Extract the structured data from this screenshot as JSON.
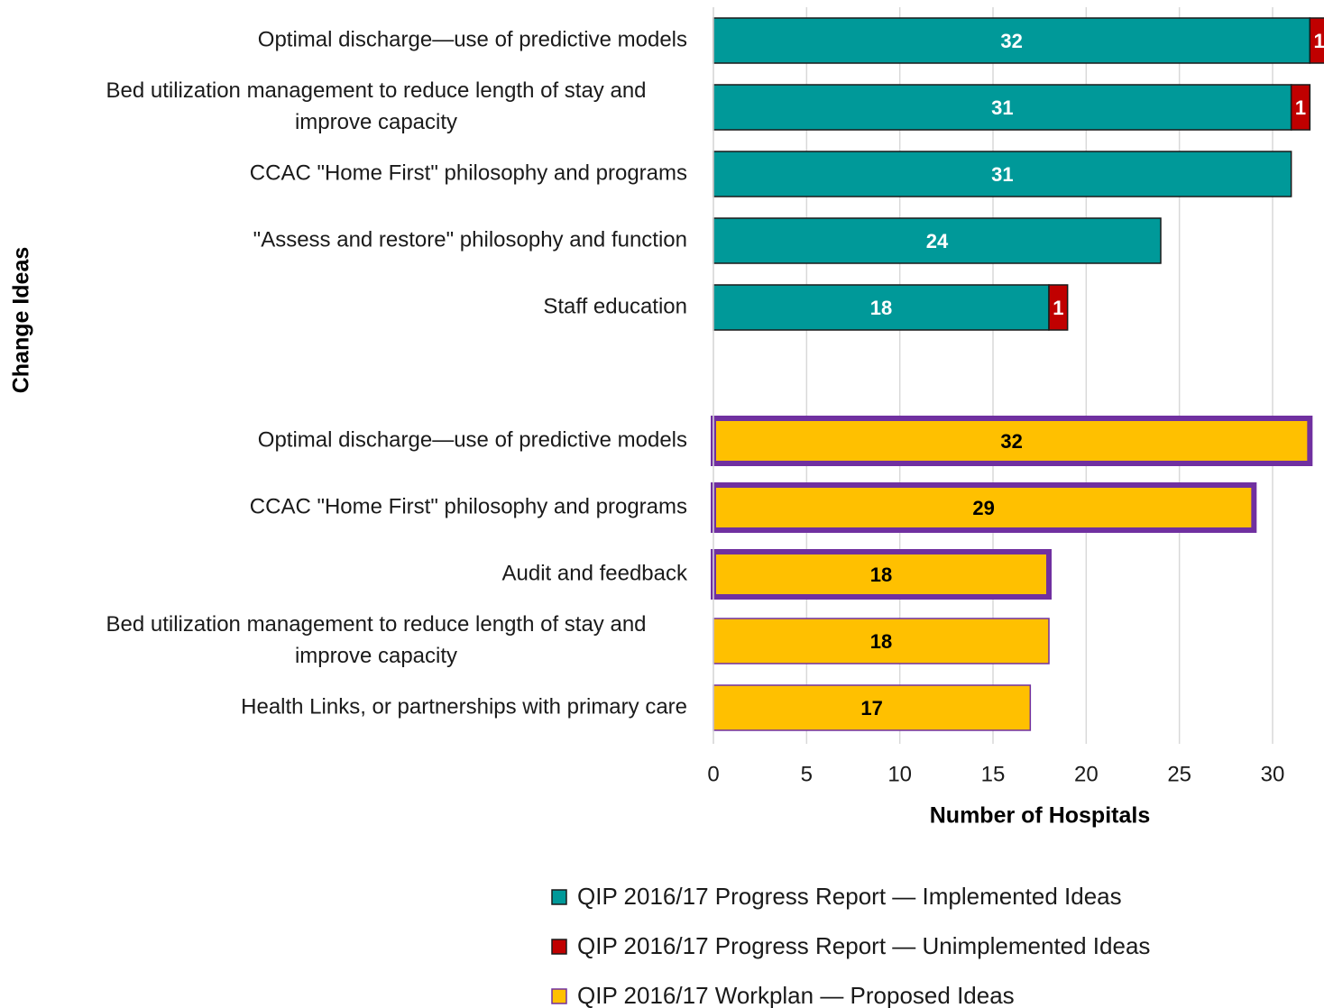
{
  "chart_data": {
    "type": "stacked_barh",
    "x_label": "Number of Hospitals",
    "y_label": "Change Ideas",
    "categories": [
      "Optimal discharge—use of predictive models",
      "Bed utilization management to reduce length of stay and improve capacity",
      "CCAC \"Home First\" philosophy and programs",
      "\"Assess and restore\" philosophy and function",
      "Staff education",
      null,
      "Optimal discharge—use of predictive models",
      "CCAC \"Home First\" philosophy and programs",
      "Audit and feedback",
      "Bed utilization management to reduce length of stay and improve capacity",
      "Health Links, or partnerships with primary care"
    ],
    "series": [
      {
        "name": "QIP 2016/17 Progress Report — Implemented Ideas",
        "color": "#009999",
        "label_color": "#ffffff",
        "values": [
          32,
          31,
          31,
          24,
          18,
          null,
          null,
          null,
          null,
          null,
          null
        ]
      },
      {
        "name": "QIP 2016/17 Progress Report — Unimplemented Ideas",
        "color": "#c00000",
        "label_color": "#ffffff",
        "values": [
          1,
          1,
          null,
          null,
          1,
          null,
          null,
          null,
          null,
          null,
          null
        ]
      },
      {
        "name": "QIP 2016/17 Workplan — Proposed Ideas",
        "color": "#ffc000",
        "label_color": "#000000",
        "outline_color": "#7030a0",
        "highlight": [
          false,
          false,
          false,
          false,
          false,
          false,
          true,
          true,
          true,
          false,
          false
        ],
        "values": [
          null,
          null,
          null,
          null,
          null,
          null,
          32,
          29,
          18,
          18,
          17
        ]
      }
    ],
    "xlim": [
      0,
      33
    ],
    "xticks": [
      0,
      5,
      10,
      15,
      20,
      25,
      30
    ],
    "grid": true,
    "legend": "bottom"
  }
}
